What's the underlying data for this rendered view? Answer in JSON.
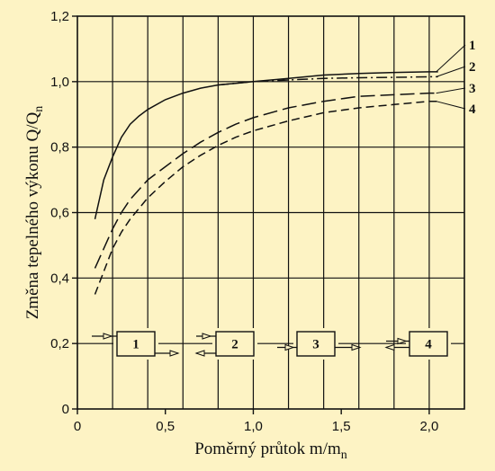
{
  "chart_data": {
    "type": "line",
    "xlabel": "Poměrný průtok m/m",
    "xlabel_sub": "n",
    "ylabel": "Změna tepelného výkonu Q/Q",
    "ylabel_sub": "n",
    "xlim": [
      0,
      2.2
    ],
    "ylim": [
      0,
      1.2
    ],
    "x_ticks": [
      0,
      0.5,
      1.0,
      1.5,
      2.0
    ],
    "x_tick_labels": [
      "0",
      "0,5",
      "1,0",
      "1,5",
      "2,0"
    ],
    "y_ticks": [
      0,
      0.2,
      0.4,
      0.6,
      0.8,
      1.0,
      1.2
    ],
    "y_tick_labels": [
      "0",
      "0,2",
      "0,4",
      "0,6",
      "0,8",
      "1,0",
      "1,2"
    ],
    "x_grid": [
      0.2,
      0.4,
      0.6,
      0.8,
      1.0,
      1.2,
      1.4,
      1.6,
      1.8,
      2.0
    ],
    "y_grid": [
      0.2,
      0.4,
      0.6,
      0.8,
      1.0
    ],
    "grid": true,
    "series": [
      {
        "name": "1",
        "style": "solid",
        "x": [
          0.1,
          0.15,
          0.2,
          0.25,
          0.3,
          0.35,
          0.4,
          0.5,
          0.6,
          0.7,
          0.8,
          0.9,
          1.0,
          1.2,
          1.4,
          1.6,
          1.8,
          2.0,
          2.05
        ],
        "y": [
          0.58,
          0.7,
          0.77,
          0.83,
          0.87,
          0.895,
          0.915,
          0.945,
          0.965,
          0.98,
          0.99,
          0.995,
          1.0,
          1.01,
          1.02,
          1.025,
          1.028,
          1.03,
          1.03
        ]
      },
      {
        "name": "2",
        "style": "dash-dot",
        "x": [
          0.8,
          1.0,
          1.2,
          1.4,
          1.6,
          1.8,
          2.0,
          2.05
        ],
        "y": [
          0.99,
          1.0,
          1.005,
          1.01,
          1.012,
          1.013,
          1.015,
          1.015
        ]
      },
      {
        "name": "3",
        "style": "long-dash",
        "x": [
          0.1,
          0.15,
          0.2,
          0.25,
          0.3,
          0.4,
          0.5,
          0.6,
          0.7,
          0.8,
          0.9,
          1.0,
          1.2,
          1.4,
          1.6,
          1.8,
          2.0,
          2.05
        ],
        "y": [
          0.43,
          0.49,
          0.55,
          0.6,
          0.64,
          0.7,
          0.74,
          0.78,
          0.815,
          0.845,
          0.87,
          0.89,
          0.92,
          0.94,
          0.955,
          0.96,
          0.965,
          0.965
        ]
      },
      {
        "name": "4",
        "style": "short-dash",
        "x": [
          0.1,
          0.15,
          0.2,
          0.25,
          0.3,
          0.4,
          0.5,
          0.6,
          0.7,
          0.8,
          0.9,
          1.0,
          1.2,
          1.4,
          1.6,
          1.8,
          2.0,
          2.05
        ],
        "y": [
          0.35,
          0.42,
          0.49,
          0.54,
          0.58,
          0.645,
          0.695,
          0.74,
          0.775,
          0.805,
          0.83,
          0.85,
          0.88,
          0.905,
          0.92,
          0.93,
          0.94,
          0.94
        ]
      }
    ],
    "curve_labels": [
      "1",
      "2",
      "3",
      "4"
    ],
    "legend_boxes": [
      "1",
      "2",
      "3",
      "4"
    ]
  }
}
